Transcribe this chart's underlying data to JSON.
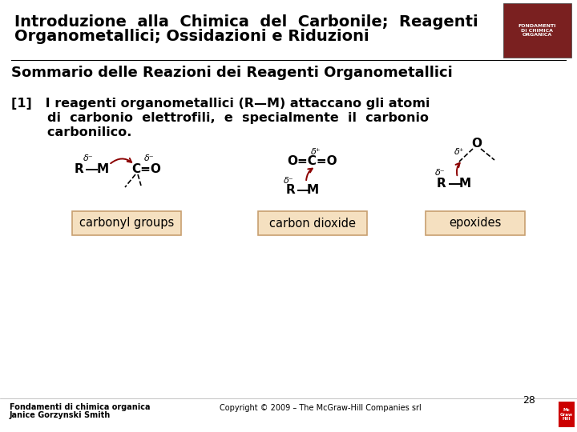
{
  "bg_color": "#ffffff",
  "title_line1": "Introduzione  alla  Chimica  del  Carbonile;  Reagenti",
  "title_line2": "Organometallici; Ossidazioni e Riduzioni",
  "subtitle": "Sommario delle Reazioni dei Reagenti Organometallici",
  "body_text_line1": "[1]   I reagenti organometallici (R—M) attaccano gli atomi",
  "body_text_line2": "        di  carbonio  elettrofili,  e  specialmente  il  carbonio",
  "body_text_line3": "        carbonilico.",
  "footer_left1": "Fondamenti di chimica organica",
  "footer_left2": "Janice Gorzynski Smith",
  "footer_center": "Copyright © 2009 – The McGraw-Hill Companies srl",
  "footer_page": "28",
  "label1": "carbonyl groups",
  "label2": "carbon dioxide",
  "label3": "epoxides",
  "label_bg": "#f5e0c0",
  "label_border": "#c8a070",
  "dark_red": "#8b0000",
  "black": "#000000",
  "gray": "#666666",
  "title_fontsize": 14,
  "subtitle_fontsize": 13,
  "body_fontsize": 11.5,
  "footer_fontsize": 7,
  "chem_fontsize": 11,
  "delta_fontsize": 8
}
